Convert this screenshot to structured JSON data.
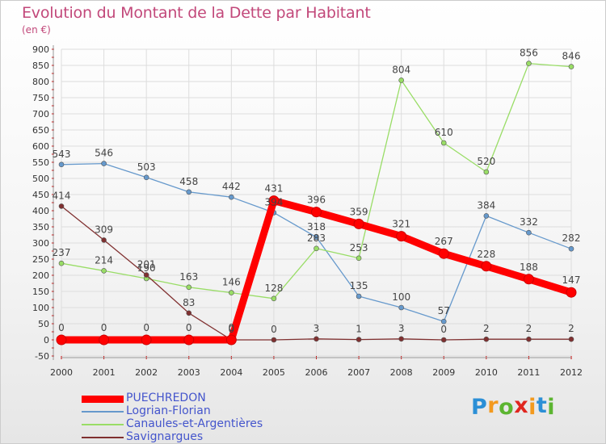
{
  "title": "Evolution du Montant de la Dette par Habitant",
  "subtitle": "(en €)",
  "logo": {
    "text": "Proxiti",
    "letters": [
      "P",
      "r",
      "o",
      "x",
      "i",
      "t",
      "i"
    ],
    "colors": [
      "#2b8fd6",
      "#f39a1e",
      "#5cb531",
      "#e0261f",
      "#f39a1e",
      "#2b8fd6",
      "#5cb531"
    ]
  },
  "colors": {
    "title": "#c2487a",
    "axis_text": "#333333",
    "grid": "#dddddd",
    "axis_ticks": "#cc0000",
    "legend_text": "#4455cc"
  },
  "chart_data": {
    "type": "line",
    "title": "Evolution du Montant de la Dette par Habitant",
    "subtitle": "(en €)",
    "x": [
      "2000",
      "2001",
      "2002",
      "2003",
      "2004",
      "2005",
      "2006",
      "2007",
      "2008",
      "2009",
      "2010",
      "2011",
      "2012"
    ],
    "ylim": [
      -50,
      900
    ],
    "yticks": [
      -50,
      0,
      50,
      100,
      150,
      200,
      250,
      300,
      350,
      400,
      450,
      500,
      550,
      600,
      650,
      700,
      750,
      800,
      850,
      900
    ],
    "grid": true,
    "legend_position": "bottom-left",
    "series": [
      {
        "name": "PUECHREDON",
        "color": "#ff0000",
        "emphasis": true,
        "values": [
          0,
          0,
          0,
          0,
          0,
          431,
          396,
          359,
          321,
          267,
          228,
          188,
          147
        ]
      },
      {
        "name": "Logrian-Florian",
        "color": "#6699cc",
        "emphasis": false,
        "values": [
          543,
          546,
          503,
          458,
          442,
          394,
          318,
          135,
          100,
          57,
          384,
          332,
          282
        ]
      },
      {
        "name": "Canaules-et-Argentières",
        "color": "#99dd66",
        "emphasis": false,
        "values": [
          237,
          214,
          190,
          163,
          146,
          128,
          283,
          253,
          804,
          610,
          520,
          856,
          846
        ]
      },
      {
        "name": "Savignargues",
        "color": "#803030",
        "emphasis": false,
        "values": [
          414,
          309,
          201,
          83,
          0,
          0,
          3,
          1,
          3,
          0,
          2,
          2,
          2
        ]
      }
    ]
  }
}
